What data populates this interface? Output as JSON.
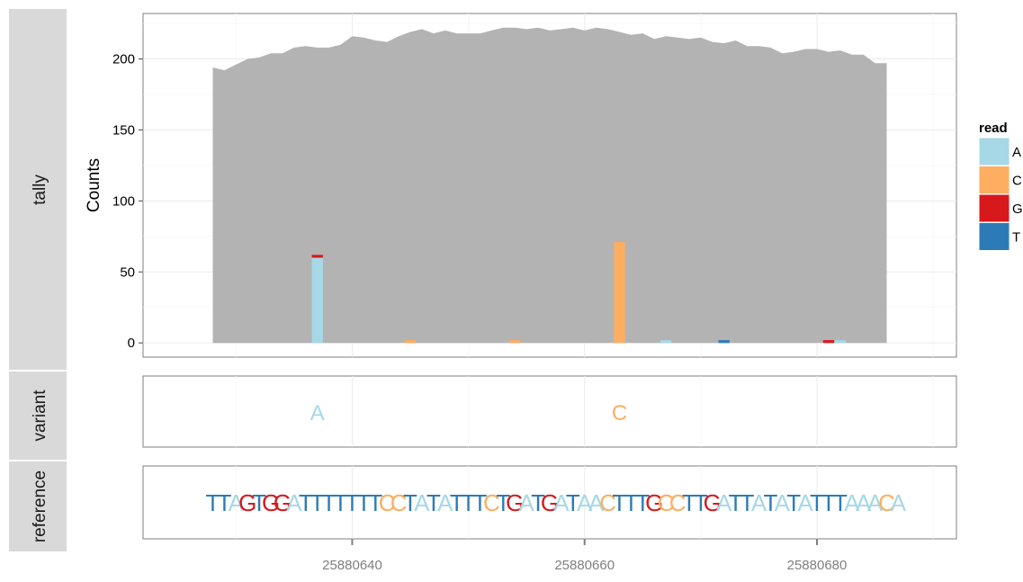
{
  "chart_data": {
    "type": "bar",
    "tracks": [
      "tally",
      "variant",
      "reference"
    ],
    "ylabel": "Counts",
    "xlabel": "",
    "xlim": [
      25880622,
      25880692
    ],
    "x_ticks": [
      25880640,
      25880660,
      25880680
    ],
    "x_tick_labels": [
      "25880640",
      "25880660",
      "25880680"
    ],
    "y_ticks": [
      0,
      50,
      100,
      150,
      200
    ],
    "y_tick_labels": [
      "0",
      "50",
      "100",
      "150",
      "200"
    ],
    "ylim": [
      -10,
      232
    ],
    "grid": true,
    "legend": {
      "title": "read",
      "placement": "right",
      "entries": [
        {
          "label": "A",
          "color": "#a6d8e7"
        },
        {
          "label": "C",
          "color": "#fdae61"
        },
        {
          "label": "G",
          "color": "#d7191c"
        },
        {
          "label": "T",
          "color": "#2c7bb6"
        }
      ]
    },
    "colors": {
      "A": "#a6d8e7",
      "C": "#fdae61",
      "G": "#d7191c",
      "T": "#2c7bb6",
      "coverage": "#b3b3b3",
      "panel_strip": "#d9d9d9"
    },
    "coverage": {
      "start": 25880628,
      "values": [
        194,
        192,
        196,
        200,
        201,
        204,
        204,
        208,
        209,
        208,
        208,
        210,
        216,
        215,
        213,
        212,
        216,
        219,
        221,
        218,
        220,
        218,
        218,
        218,
        220,
        222,
        222,
        221,
        222,
        220,
        221,
        222,
        220,
        222,
        221,
        219,
        217,
        218,
        214,
        216,
        215,
        214,
        215,
        212,
        211,
        213,
        209,
        209,
        208,
        204,
        205,
        207,
        207,
        205,
        206,
        203,
        203,
        197,
        197
      ]
    },
    "tally_series": [
      {
        "name": "A",
        "x": [
          25880637,
          25880667,
          25880682
        ],
        "values": [
          60,
          2,
          2
        ]
      },
      {
        "name": "C",
        "x": [
          25880645,
          25880654,
          25880663
        ],
        "values": [
          2,
          2,
          71
        ]
      },
      {
        "name": "G",
        "x": [
          25880637,
          25880681
        ],
        "values": [
          2,
          2
        ]
      },
      {
        "name": "T",
        "x": [
          25880672
        ],
        "values": [
          2
        ]
      }
    ],
    "variants": [
      {
        "x": 25880637,
        "base": "A"
      },
      {
        "x": 25880663,
        "base": "C"
      }
    ],
    "reference": {
      "start": 25880628,
      "sequence": "TTAGTGGATTTTTTTCCTATATTTCTGATGATAACTTTGCCTTGATTATATATTTAAACA"
    }
  }
}
